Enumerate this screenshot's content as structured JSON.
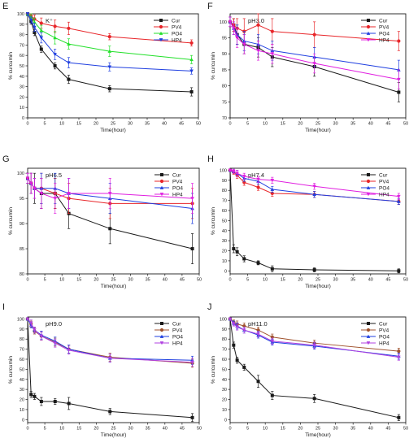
{
  "figure": {
    "background": "#ffffff"
  },
  "chart_data": [
    {
      "type": "line",
      "panel": "E",
      "condition": "K⁺",
      "xlabel": "Time(hour)",
      "ylabel": "% curcumin",
      "xlim": [
        0,
        50
      ],
      "ylim": [
        0,
        100
      ],
      "x_ticks": [
        0,
        5,
        10,
        15,
        20,
        25,
        30,
        35,
        40,
        45,
        50
      ],
      "y_ticks": [
        0,
        10,
        20,
        30,
        40,
        50,
        60,
        70,
        80,
        90,
        100
      ],
      "legend_placement": "top-right",
      "series": [
        {
          "name": "Cur",
          "color": "#1a1a1a",
          "marker": "square",
          "x": [
            0,
            1,
            2,
            4,
            8,
            12,
            24,
            48
          ],
          "y": [
            100,
            93,
            82,
            66,
            50,
            37,
            28,
            25
          ],
          "err": [
            2,
            3,
            3,
            3,
            3,
            4,
            3,
            4
          ]
        },
        {
          "name": "PV4",
          "color": "#e8262a",
          "marker": "circle",
          "x": [
            0,
            1,
            2,
            4,
            8,
            12,
            24,
            48
          ],
          "y": [
            100,
            98,
            95,
            91,
            88,
            86,
            78,
            72
          ],
          "err": [
            2,
            3,
            4,
            5,
            6,
            6,
            3,
            3
          ]
        },
        {
          "name": "PO4",
          "color": "#22e02a",
          "marker": "triangle",
          "x": [
            0,
            1,
            2,
            4,
            8,
            12,
            24,
            48
          ],
          "y": [
            100,
            97,
            92,
            84,
            77,
            71,
            64,
            56
          ],
          "err": [
            2,
            3,
            4,
            5,
            6,
            5,
            5,
            4
          ]
        },
        {
          "name": "HP4",
          "color": "#1f3fe0",
          "marker": "triangle-down",
          "x": [
            0,
            1,
            2,
            4,
            8,
            12,
            24,
            48
          ],
          "y": [
            100,
            94,
            87,
            77,
            61,
            53,
            49,
            45
          ],
          "err": [
            2,
            3,
            4,
            5,
            5,
            5,
            4,
            3
          ]
        }
      ]
    },
    {
      "type": "line",
      "panel": "F",
      "condition": "pH3.0",
      "xlabel": "Time(hour)",
      "ylabel": "% curcumin",
      "xlim": [
        0,
        50
      ],
      "ylim": [
        70,
        102.5
      ],
      "x_ticks": [
        0,
        5,
        10,
        15,
        20,
        25,
        30,
        35,
        40,
        45,
        50
      ],
      "y_ticks": [
        70,
        75,
        80,
        85,
        90,
        95,
        100
      ],
      "legend_placement": "top-right",
      "series": [
        {
          "name": "Cur",
          "color": "#1a1a1a",
          "marker": "square",
          "x": [
            0,
            1,
            2,
            4,
            8,
            12,
            24,
            48
          ],
          "y": [
            100,
            99,
            96,
            93,
            92,
            89,
            86,
            78
          ],
          "err": [
            1.5,
            2,
            3,
            3,
            3,
            3,
            3,
            3
          ]
        },
        {
          "name": "PV4",
          "color": "#e8262a",
          "marker": "circle",
          "x": [
            0,
            1,
            2,
            4,
            8,
            12,
            24,
            48
          ],
          "y": [
            100,
            99,
            98,
            97,
            99,
            97,
            96,
            94
          ],
          "err": [
            1.5,
            2,
            3,
            4,
            5,
            4,
            4,
            3
          ]
        },
        {
          "name": "PO4",
          "color": "#1f3fe0",
          "marker": "triangle",
          "x": [
            0,
            1,
            2,
            4,
            8,
            12,
            24,
            48
          ],
          "y": [
            100,
            98,
            96,
            94,
            93,
            91,
            89,
            85
          ],
          "err": [
            1.5,
            2,
            3,
            3,
            3,
            3,
            3,
            3
          ]
        },
        {
          "name": "HP4",
          "color": "#e01ee0",
          "marker": "triangle-down",
          "x": [
            0,
            1,
            2,
            4,
            8,
            12,
            24,
            48
          ],
          "y": [
            100,
            98,
            95,
            93,
            91,
            90,
            87,
            82
          ],
          "err": [
            1.5,
            2,
            3,
            3,
            3,
            3,
            3,
            3
          ]
        }
      ]
    },
    {
      "type": "line",
      "panel": "G",
      "condition": "pH6.5",
      "xlabel": "Time(hour)",
      "ylabel": "% curcumin",
      "xlim": [
        0,
        50
      ],
      "ylim": [
        80,
        101
      ],
      "x_ticks": [
        0,
        5,
        10,
        15,
        20,
        25,
        30,
        35,
        40,
        45,
        50
      ],
      "y_ticks": [
        80,
        85,
        90,
        95,
        100
      ],
      "legend_placement": "top-right",
      "series": [
        {
          "name": "Cur",
          "color": "#1a1a1a",
          "marker": "square",
          "x": [
            0,
            1,
            2,
            4,
            8,
            12,
            24,
            48
          ],
          "y": [
            99,
            98,
            97,
            96,
            96,
            92,
            89,
            85
          ],
          "err": [
            1,
            2,
            3,
            3,
            3,
            3,
            3,
            3
          ]
        },
        {
          "name": "PV4",
          "color": "#e8262a",
          "marker": "circle",
          "x": [
            0,
            1,
            2,
            4,
            8,
            12,
            24,
            48
          ],
          "y": [
            99,
            98,
            97,
            97,
            96,
            95,
            94,
            94
          ],
          "err": [
            1,
            2,
            2,
            3,
            3,
            3,
            3,
            3
          ]
        },
        {
          "name": "PO4",
          "color": "#1f3fe0",
          "marker": "triangle",
          "x": [
            0,
            1,
            2,
            4,
            8,
            12,
            24,
            48
          ],
          "y": [
            99,
            98,
            97,
            97,
            97,
            96,
            95,
            93
          ],
          "err": [
            1,
            2,
            2,
            3,
            3,
            3,
            3,
            3
          ]
        },
        {
          "name": "HP4",
          "color": "#e01ee0",
          "marker": "triangle-down",
          "x": [
            0,
            1,
            2,
            4,
            8,
            12,
            24,
            48
          ],
          "y": [
            99,
            98,
            97,
            96,
            95,
            96,
            96,
            95
          ],
          "err": [
            1,
            2,
            2,
            3,
            3,
            3,
            3,
            3
          ]
        }
      ]
    },
    {
      "type": "line",
      "panel": "H",
      "condition": "pH7.4",
      "xlabel": "Time(hour)",
      "ylabel": "% curcumin",
      "xlim": [
        0,
        50
      ],
      "ylim": [
        -3,
        102
      ],
      "x_ticks": [
        0,
        5,
        10,
        15,
        20,
        25,
        30,
        35,
        40,
        45,
        50
      ],
      "y_ticks": [
        0,
        10,
        20,
        30,
        40,
        50,
        60,
        70,
        80,
        90,
        100
      ],
      "legend_placement": "top-right",
      "series": [
        {
          "name": "Cur",
          "color": "#1a1a1a",
          "marker": "square",
          "x": [
            0,
            1,
            2,
            4,
            8,
            12,
            24,
            48
          ],
          "y": [
            100,
            22,
            19,
            12,
            8,
            2,
            1,
            0
          ],
          "err": [
            1,
            4,
            4,
            3,
            2,
            3,
            2,
            2
          ]
        },
        {
          "name": "PV4",
          "color": "#e8262a",
          "marker": "circle",
          "x": [
            0,
            1,
            2,
            4,
            8,
            12,
            24,
            48
          ],
          "y": [
            100,
            98,
            95,
            88,
            83,
            77,
            76,
            69
          ],
          "err": [
            1,
            2,
            3,
            3,
            3,
            3,
            3,
            3
          ]
        },
        {
          "name": "PO4",
          "color": "#1f3fe0",
          "marker": "triangle",
          "x": [
            0,
            1,
            2,
            4,
            8,
            12,
            24,
            48
          ],
          "y": [
            100,
            99,
            97,
            92,
            89,
            81,
            76,
            69
          ],
          "err": [
            1,
            2,
            3,
            3,
            3,
            3,
            3,
            3
          ]
        },
        {
          "name": "HP4",
          "color": "#e01ee0",
          "marker": "triangle-down",
          "x": [
            0,
            1,
            2,
            4,
            8,
            12,
            24,
            48
          ],
          "y": [
            100,
            99,
            97,
            94,
            91,
            90,
            84,
            74
          ],
          "err": [
            1,
            2,
            3,
            3,
            3,
            3,
            3,
            3
          ]
        }
      ]
    },
    {
      "type": "line",
      "panel": "I",
      "condition": "pH9.0",
      "xlabel": "Time(hour)",
      "ylabel": "% curcumin",
      "xlim": [
        0,
        50
      ],
      "ylim": [
        -3,
        102
      ],
      "x_ticks": [
        0,
        5,
        10,
        15,
        20,
        25,
        30,
        35,
        40,
        45,
        50
      ],
      "y_ticks": [
        0,
        10,
        20,
        30,
        40,
        50,
        60,
        70,
        80,
        90,
        100
      ],
      "legend_placement": "top-right",
      "series": [
        {
          "name": "Cur",
          "color": "#1a1a1a",
          "marker": "square",
          "x": [
            0,
            1,
            2,
            4,
            8,
            12,
            24,
            48
          ],
          "y": [
            100,
            25,
            23,
            18,
            18,
            16,
            8,
            2
          ],
          "err": [
            1,
            3,
            3,
            4,
            3,
            6,
            3,
            4
          ]
        },
        {
          "name": "PV4",
          "color": "#a0522d",
          "marker": "circle",
          "x": [
            0,
            1,
            2,
            4,
            8,
            12,
            24,
            48
          ],
          "y": [
            100,
            95,
            88,
            83,
            77,
            70,
            62,
            56
          ],
          "err": [
            1,
            3,
            3,
            4,
            4,
            4,
            4,
            4
          ]
        },
        {
          "name": "PO4",
          "color": "#1f3fe0",
          "marker": "triangle",
          "x": [
            0,
            1,
            2,
            4,
            8,
            12,
            24,
            48
          ],
          "y": [
            100,
            94,
            89,
            84,
            78,
            70,
            61,
            59
          ],
          "err": [
            1,
            3,
            3,
            4,
            4,
            4,
            4,
            4
          ]
        },
        {
          "name": "HP4",
          "color": "#b040e0",
          "marker": "triangle-down",
          "x": [
            0,
            1,
            2,
            4,
            8,
            12,
            24,
            48
          ],
          "y": [
            100,
            96,
            89,
            83,
            76,
            69,
            61,
            57
          ],
          "err": [
            1,
            3,
            3,
            4,
            4,
            4,
            4,
            4
          ]
        }
      ]
    },
    {
      "type": "line",
      "panel": "J",
      "condition": "pH11.0",
      "xlabel": "Time(hour)",
      "ylabel": "% curcumin",
      "xlim": [
        0,
        50
      ],
      "ylim": [
        -3,
        102
      ],
      "x_ticks": [
        0,
        5,
        10,
        15,
        20,
        25,
        30,
        35,
        40,
        45,
        50
      ],
      "y_ticks": [
        0,
        10,
        20,
        30,
        40,
        50,
        60,
        70,
        80,
        90,
        100
      ],
      "legend_placement": "top-right",
      "series": [
        {
          "name": "Cur",
          "color": "#1a1a1a",
          "marker": "square",
          "x": [
            0,
            1,
            2,
            4,
            8,
            12,
            24,
            48
          ],
          "y": [
            100,
            74,
            59,
            52,
            38,
            24,
            21,
            2
          ],
          "err": [
            1,
            3,
            3,
            3,
            6,
            4,
            4,
            3
          ]
        },
        {
          "name": "PV4",
          "color": "#a0522d",
          "marker": "circle",
          "x": [
            0,
            1,
            2,
            4,
            8,
            12,
            24,
            48
          ],
          "y": [
            100,
            97,
            95,
            93,
            89,
            82,
            76,
            68
          ],
          "err": [
            1,
            2,
            3,
            3,
            3,
            3,
            3,
            3
          ]
        },
        {
          "name": "PO4",
          "color": "#1f3fe0",
          "marker": "triangle",
          "x": [
            0,
            1,
            2,
            4,
            8,
            12,
            24,
            48
          ],
          "y": [
            100,
            96,
            93,
            89,
            84,
            77,
            73,
            63
          ],
          "err": [
            1,
            2,
            3,
            3,
            3,
            3,
            3,
            3
          ]
        },
        {
          "name": "HP4",
          "color": "#b040e0",
          "marker": "triangle-down",
          "x": [
            0,
            1,
            2,
            4,
            8,
            12,
            24,
            48
          ],
          "y": [
            100,
            95,
            92,
            89,
            85,
            78,
            74,
            62
          ],
          "err": [
            1,
            2,
            3,
            3,
            3,
            3,
            3,
            3
          ]
        }
      ]
    }
  ]
}
